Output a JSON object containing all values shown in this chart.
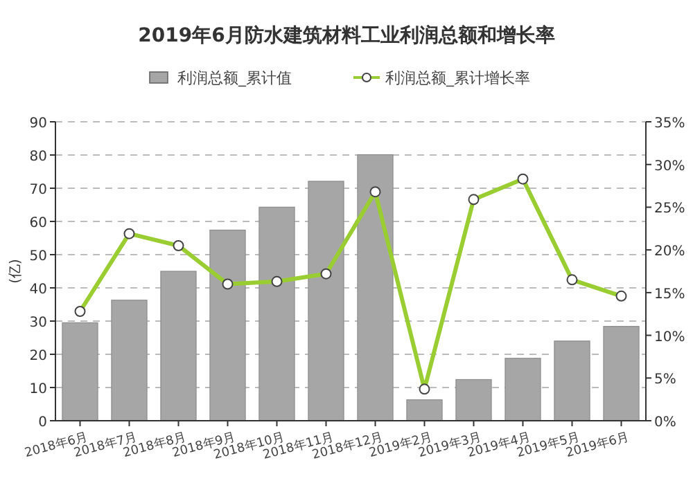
{
  "chart_data": {
    "type": "bar",
    "title": "2019年6月防水建筑材料工业利润总额和增长率",
    "ylabel": "(亿)",
    "categories": [
      "2018年6月",
      "2018年7月",
      "2018年8月",
      "2018年9月",
      "2018年10月",
      "2018年11月",
      "2018年12月",
      "2019年2月",
      "2019年3月",
      "2019年4月",
      "2019年5月",
      "2019年6月"
    ],
    "series": [
      {
        "name": "利润总额_累计值",
        "color": "#a6a6a6",
        "values": [
          29.5,
          36.3,
          45,
          57.4,
          64.3,
          72.1,
          80.1,
          6.3,
          12.4,
          18.8,
          24.0,
          28.4
        ]
      },
      {
        "name": "利润总额_累计增长率",
        "type": "line",
        "axis": "y2",
        "color": "#9acd32",
        "marker": "circle",
        "values": [
          12.8,
          21.9,
          20.5,
          16.0,
          16.3,
          17.2,
          26.8,
          3.7,
          25.9,
          28.3,
          16.5,
          14.6
        ]
      }
    ],
    "ylim": [
      0,
      90
    ],
    "yticks": [
      0,
      10,
      20,
      30,
      40,
      50,
      60,
      70,
      80,
      90
    ],
    "y2lim": [
      0,
      35
    ],
    "y2ticks": [
      {
        "value": 0,
        "label": "0%"
      },
      {
        "value": 5,
        "label": "5%"
      },
      {
        "value": 10,
        "label": "10%"
      },
      {
        "value": 15,
        "label": "15%"
      },
      {
        "value": 20,
        "label": "20%"
      },
      {
        "value": 25,
        "label": "25%"
      },
      {
        "value": 30,
        "label": "30%"
      },
      {
        "value": 35,
        "label": "35%"
      }
    ],
    "grid": "y",
    "legend": "top"
  }
}
